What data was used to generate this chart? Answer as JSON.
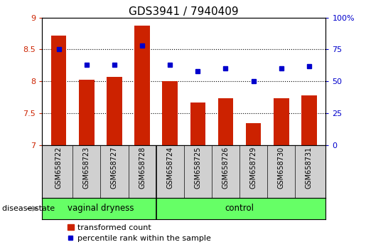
{
  "title": "GDS3941 / 7940409",
  "samples": [
    "GSM658722",
    "GSM658723",
    "GSM658727",
    "GSM658728",
    "GSM658724",
    "GSM658725",
    "GSM658726",
    "GSM658729",
    "GSM658730",
    "GSM658731"
  ],
  "bar_values": [
    8.72,
    8.02,
    8.07,
    8.88,
    8.0,
    7.67,
    7.73,
    7.34,
    7.73,
    7.78
  ],
  "percentile_values": [
    75,
    63,
    63,
    78,
    63,
    58,
    60,
    50,
    60,
    62
  ],
  "bar_color": "#cc2200",
  "dot_color": "#0000cc",
  "ylim_left": [
    7,
    9
  ],
  "ylim_right": [
    0,
    100
  ],
  "yticks_left": [
    7,
    7.5,
    8,
    8.5,
    9
  ],
  "yticks_right": [
    0,
    25,
    50,
    75,
    100
  ],
  "ytick_labels_right": [
    "0",
    "25",
    "50",
    "75",
    "100%"
  ],
  "group1_samples": 4,
  "group1_label": "vaginal dryness",
  "group2_label": "control",
  "group_color": "#66ff66",
  "disease_state_label": "disease state",
  "legend_bar_label": "transformed count",
  "legend_dot_label": "percentile rank within the sample",
  "background_color": "#ffffff",
  "tick_area_color": "#d0d0d0",
  "title_fontsize": 11,
  "axis_fontsize": 8,
  "bar_width": 0.55
}
